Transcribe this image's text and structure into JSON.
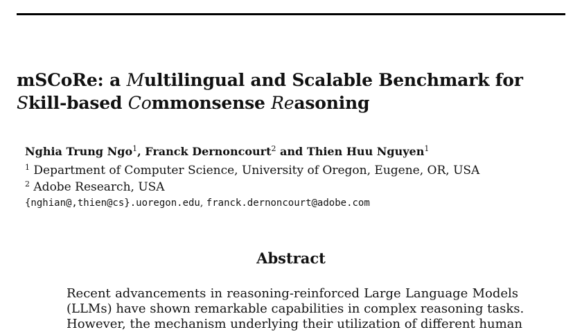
{
  "title": {
    "p1": "mSCoRe: a ",
    "i1": "M",
    "p2": "ultilingual and Scalable Benchmark for ",
    "i2": "S",
    "p3": "kill-based ",
    "i3": "Co",
    "p4": "mmonsense ",
    "i4": "Re",
    "p5": "asoning"
  },
  "authors": [
    {
      "name": "Nghia Trung Ngo",
      "sup": "1"
    },
    {
      "name": "Franck Dernoncourt",
      "sup": "2"
    },
    {
      "name": "Thien Huu Nguyen",
      "sup": "1"
    }
  ],
  "author_sep": ", ",
  "author_and": " and ",
  "affiliations": [
    {
      "sup": "1",
      "text": "Department of Computer Science, University of Oregon, Eugene, OR, USA"
    },
    {
      "sup": "2",
      "text": "Adobe Research, USA"
    }
  ],
  "emails": {
    "first": "{nghian@,thien@cs}.uoregon.edu",
    "sep": ", ",
    "second": "franck.dernoncourt@adobe.com"
  },
  "abstract": {
    "heading": "Abstract",
    "lines": [
      "Recent advancements in reasoning-reinforced Large Language Models",
      "(LLMs) have shown remarkable capabilities in complex reasoning tasks.",
      "However, the mechanism underlying their utilization of different human"
    ]
  }
}
